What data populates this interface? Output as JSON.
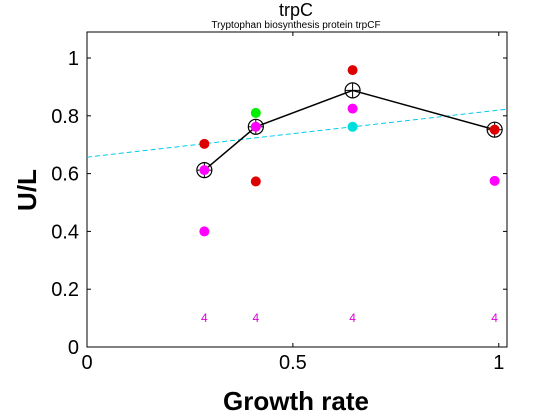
{
  "chart_data": {
    "type": "scatter",
    "title": "trpC",
    "subtitle": "Tryptophan biosynthesis protein trpCF",
    "xlabel": "Growth rate",
    "ylabel": "U/L",
    "xlim": [
      0,
      1.02
    ],
    "ylim": [
      0,
      1.09
    ],
    "x_ticks": [
      0,
      0.5,
      1
    ],
    "x_tick_labels": [
      "0",
      "0.5",
      "1"
    ],
    "y_ticks": [
      0,
      0.2,
      0.4,
      0.6,
      0.8,
      1
    ],
    "y_tick_labels": [
      "0",
      "0.2",
      "0.4",
      "0.6",
      "0.8",
      "1"
    ],
    "grid": false,
    "mean_line": {
      "color": "#000000",
      "points": [
        {
          "x": 0.285,
          "y": 0.612
        },
        {
          "x": 0.41,
          "y": 0.762
        },
        {
          "x": 0.645,
          "y": 0.888
        },
        {
          "x": 0.99,
          "y": 0.752
        }
      ]
    },
    "fit_line": {
      "color": "#00ccee",
      "dashed": true,
      "x": [
        0,
        1.02
      ],
      "y": [
        0.657,
        0.823
      ]
    },
    "points": [
      {
        "x": 0.285,
        "y": 0.703,
        "color": "#dd0000"
      },
      {
        "x": 0.285,
        "y": 0.612,
        "color": "#ff00ff"
      },
      {
        "x": 0.285,
        "y": 0.4,
        "color": "#ff00ff"
      },
      {
        "x": 0.41,
        "y": 0.81,
        "color": "#00ee00"
      },
      {
        "x": 0.41,
        "y": 0.762,
        "color": "#ff00ff"
      },
      {
        "x": 0.41,
        "y": 0.573,
        "color": "#dd0000"
      },
      {
        "x": 0.645,
        "y": 0.958,
        "color": "#dd0000"
      },
      {
        "x": 0.645,
        "y": 0.825,
        "color": "#ff00ff"
      },
      {
        "x": 0.645,
        "y": 0.762,
        "color": "#00dddd"
      },
      {
        "x": 0.99,
        "y": 0.752,
        "color": "#dd0000"
      },
      {
        "x": 0.99,
        "y": 0.575,
        "color": "#ff00ff"
      }
    ],
    "count_labels": {
      "color": "#dd00dd",
      "y": 0.1,
      "items": [
        {
          "x": 0.285,
          "text": "4"
        },
        {
          "x": 0.41,
          "text": "4"
        },
        {
          "x": 0.645,
          "text": "4"
        },
        {
          "x": 0.99,
          "text": "4"
        }
      ]
    }
  }
}
